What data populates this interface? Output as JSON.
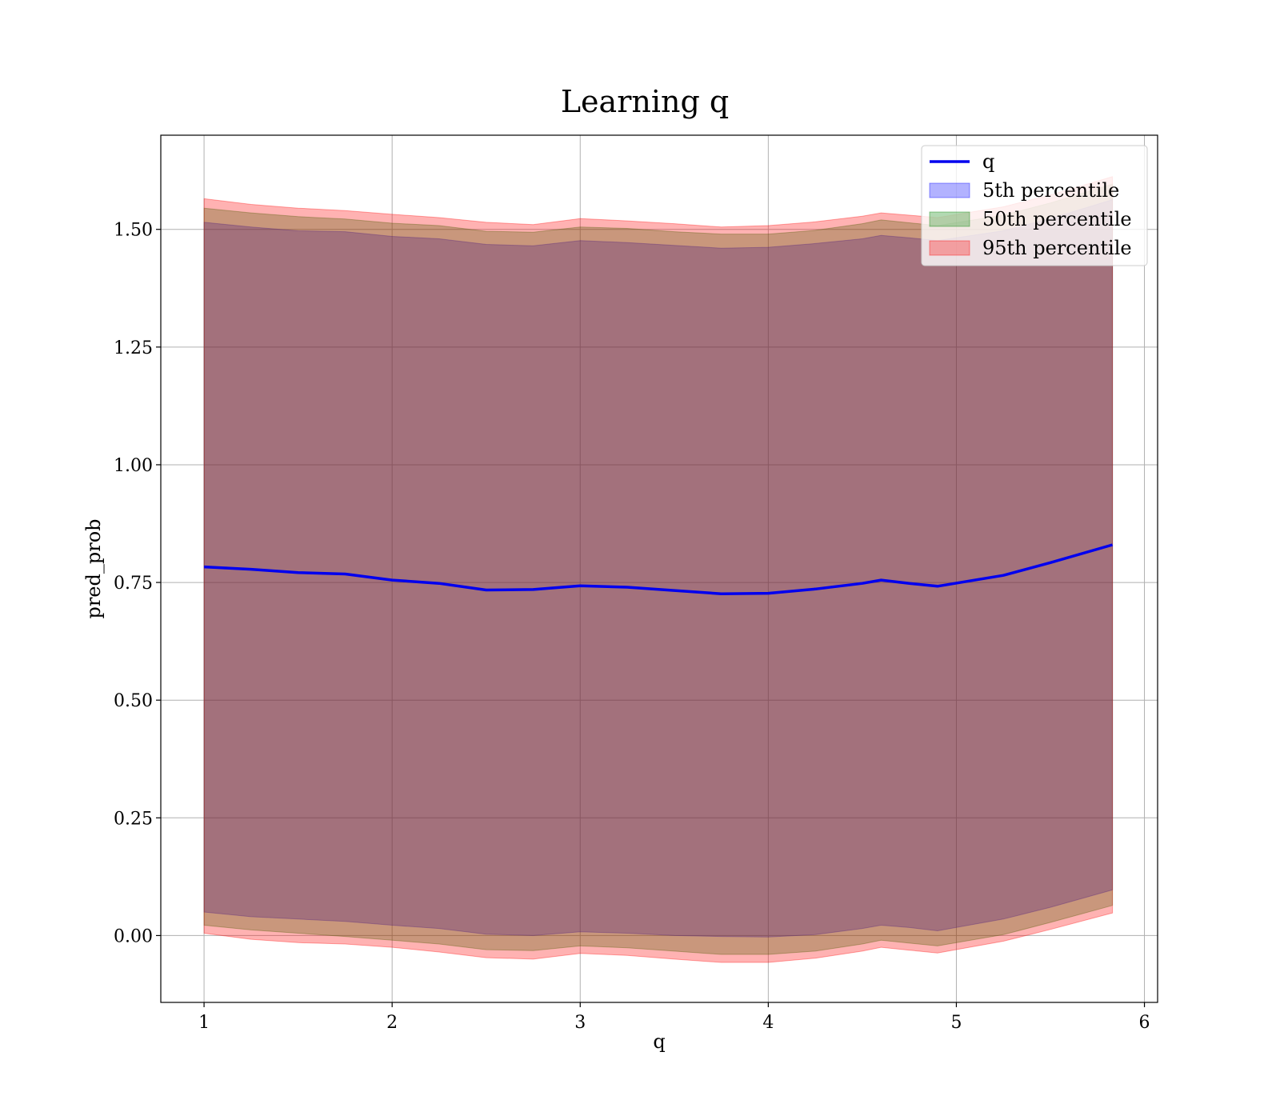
{
  "chart_data": {
    "type": "area",
    "title": "Learning q",
    "xlabel": "q",
    "ylabel": "pred_prob",
    "xlim": [
      0.77,
      6.07
    ],
    "ylim": [
      -0.142,
      1.7
    ],
    "x_ticks": [
      1,
      2,
      3,
      4,
      5,
      6
    ],
    "y_ticks": [
      0.0,
      0.25,
      0.5,
      0.75,
      1.0,
      1.25,
      1.5
    ],
    "x_tick_labels": [
      "1",
      "2",
      "3",
      "4",
      "5",
      "6"
    ],
    "y_tick_labels": [
      "0.00",
      "0.25",
      "0.50",
      "0.75",
      "1.00",
      "1.25",
      "1.50"
    ],
    "grid": true,
    "legend_position": "top-right",
    "x": [
      1.0,
      1.25,
      1.5,
      1.75,
      2.0,
      2.25,
      2.5,
      2.75,
      3.0,
      3.25,
      3.5,
      3.75,
      4.0,
      4.25,
      4.5,
      4.6,
      4.75,
      4.9,
      5.25,
      5.5,
      5.83
    ],
    "series": [
      {
        "name": "q",
        "kind": "line",
        "color": "#0000ee",
        "values": [
          0.783,
          0.778,
          0.771,
          0.768,
          0.755,
          0.748,
          0.734,
          0.735,
          0.743,
          0.74,
          0.733,
          0.726,
          0.727,
          0.736,
          0.748,
          0.755,
          0.748,
          0.742,
          0.765,
          0.792,
          0.83
        ]
      },
      {
        "name": "5th percentile",
        "kind": "band",
        "color": "#0000ff",
        "lower": [
          0.05,
          0.04,
          0.035,
          0.03,
          0.022,
          0.015,
          0.003,
          0.0,
          0.008,
          0.005,
          0.0,
          -0.002,
          -0.003,
          0.002,
          0.015,
          0.022,
          0.017,
          0.01,
          0.035,
          0.06,
          0.097
        ],
        "upper": [
          1.515,
          1.505,
          1.497,
          1.495,
          1.485,
          1.48,
          1.468,
          1.465,
          1.476,
          1.472,
          1.466,
          1.46,
          1.462,
          1.47,
          1.48,
          1.487,
          1.482,
          1.476,
          1.497,
          1.523,
          1.563
        ]
      },
      {
        "name": "50th percentile",
        "kind": "band",
        "color": "#008000",
        "lower": [
          0.022,
          0.012,
          0.005,
          -0.002,
          -0.01,
          -0.018,
          -0.03,
          -0.032,
          -0.022,
          -0.026,
          -0.033,
          -0.04,
          -0.04,
          -0.033,
          -0.018,
          -0.01,
          -0.016,
          -0.022,
          0.002,
          0.028,
          0.064
        ],
        "upper": [
          1.545,
          1.535,
          1.527,
          1.522,
          1.513,
          1.508,
          1.496,
          1.494,
          1.505,
          1.502,
          1.495,
          1.49,
          1.49,
          1.498,
          1.512,
          1.52,
          1.514,
          1.508,
          1.53,
          1.556,
          1.596
        ]
      },
      {
        "name": "95th percentile",
        "kind": "band",
        "color": "#ff0000",
        "lower": [
          0.005,
          -0.008,
          -0.015,
          -0.018,
          -0.025,
          -0.035,
          -0.047,
          -0.05,
          -0.038,
          -0.042,
          -0.05,
          -0.057,
          -0.057,
          -0.048,
          -0.033,
          -0.025,
          -0.031,
          -0.037,
          -0.012,
          0.013,
          0.048
        ],
        "upper": [
          1.565,
          1.553,
          1.545,
          1.54,
          1.532,
          1.525,
          1.515,
          1.51,
          1.523,
          1.518,
          1.512,
          1.505,
          1.508,
          1.516,
          1.528,
          1.535,
          1.53,
          1.525,
          1.548,
          1.573,
          1.612
        ]
      }
    ]
  }
}
